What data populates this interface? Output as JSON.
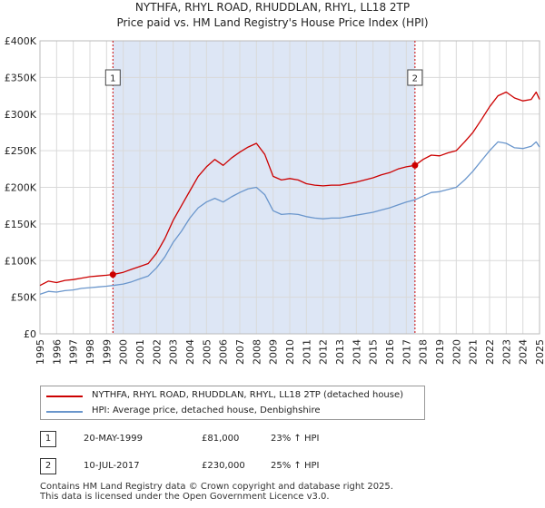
{
  "title_line1": "NYTHFA, RHYL ROAD, RHUDDLAN, RHYL, LL18 2TP",
  "title_line2": "Price paid vs. HM Land Registry's House Price Index (HPI)",
  "colors": {
    "property": "#cc0000",
    "hpi": "#6a96cc",
    "shade": "#dde6f5",
    "grid": "#d9d9d9",
    "marker_line": "#cc0000"
  },
  "chart_data": {
    "type": "line",
    "ylim": [
      0,
      400000
    ],
    "xlim": [
      1995.0,
      2025.0
    ],
    "yticks": [
      0,
      50000,
      100000,
      150000,
      200000,
      250000,
      300000,
      350000,
      400000
    ],
    "ytick_labels": [
      "£0",
      "£50K",
      "£100K",
      "£150K",
      "£200K",
      "£250K",
      "£300K",
      "£350K",
      "£400K"
    ],
    "xtick_labels": [
      "1995",
      "1996",
      "1997",
      "1998",
      "1999",
      "2000",
      "2001",
      "2002",
      "2003",
      "2004",
      "2005",
      "2006",
      "2007",
      "2008",
      "2009",
      "2010",
      "2011",
      "2012",
      "2013",
      "2014",
      "2015",
      "2016",
      "2017",
      "2018",
      "2019",
      "2020",
      "2021",
      "2022",
      "2023",
      "2024",
      "2025"
    ],
    "shaded_period": [
      1999.38,
      2017.52
    ],
    "series": [
      {
        "name": "NYTHFA, RHYL ROAD, RHUDDLAN, RHYL, LL18 2TP (detached house)",
        "x": [
          1995.0,
          1995.5,
          1996.0,
          1996.5,
          1997.0,
          1997.5,
          1998.0,
          1998.5,
          1999.0,
          1999.38,
          2000.0,
          2000.5,
          2001.0,
          2001.5,
          2002.0,
          2002.5,
          2003.0,
          2003.5,
          2004.0,
          2004.5,
          2005.0,
          2005.5,
          2006.0,
          2006.5,
          2007.0,
          2007.5,
          2008.0,
          2008.5,
          2009.0,
          2009.5,
          2010.0,
          2010.5,
          2011.0,
          2011.5,
          2012.0,
          2012.5,
          2013.0,
          2013.5,
          2014.0,
          2014.5,
          2015.0,
          2015.5,
          2016.0,
          2016.5,
          2017.0,
          2017.52,
          2018.0,
          2018.5,
          2019.0,
          2019.5,
          2020.0,
          2020.5,
          2021.0,
          2021.5,
          2022.0,
          2022.5,
          2023.0,
          2023.5,
          2024.0,
          2024.5,
          2024.8,
          2025.0
        ],
        "values": [
          66000,
          72000,
          70000,
          73000,
          74000,
          76000,
          78000,
          79000,
          80000,
          81000,
          84000,
          88000,
          92000,
          96000,
          110000,
          130000,
          155000,
          175000,
          195000,
          215000,
          228000,
          238000,
          230000,
          240000,
          248000,
          255000,
          260000,
          245000,
          215000,
          210000,
          212000,
          210000,
          205000,
          203000,
          202000,
          203000,
          203000,
          205000,
          207000,
          210000,
          213000,
          217000,
          220000,
          225000,
          228000,
          230000,
          238000,
          244000,
          243000,
          247000,
          250000,
          262000,
          275000,
          292000,
          310000,
          325000,
          330000,
          322000,
          318000,
          320000,
          330000,
          320000
        ]
      },
      {
        "name": "HPI: Average price, detached house, Denbighshire",
        "x": [
          1995.0,
          1995.5,
          1996.0,
          1996.5,
          1997.0,
          1997.5,
          1998.0,
          1998.5,
          1999.0,
          1999.38,
          2000.0,
          2000.5,
          2001.0,
          2001.5,
          2002.0,
          2002.5,
          2003.0,
          2003.5,
          2004.0,
          2004.5,
          2005.0,
          2005.5,
          2006.0,
          2006.5,
          2007.0,
          2007.5,
          2008.0,
          2008.5,
          2009.0,
          2009.5,
          2010.0,
          2010.5,
          2011.0,
          2011.5,
          2012.0,
          2012.5,
          2013.0,
          2013.5,
          2014.0,
          2014.5,
          2015.0,
          2015.5,
          2016.0,
          2016.5,
          2017.0,
          2017.52,
          2018.0,
          2018.5,
          2019.0,
          2019.5,
          2020.0,
          2020.5,
          2021.0,
          2021.5,
          2022.0,
          2022.5,
          2023.0,
          2023.5,
          2024.0,
          2024.5,
          2024.8,
          2025.0
        ],
        "values": [
          54000,
          58000,
          57000,
          59000,
          60000,
          62000,
          63000,
          64000,
          65000,
          66000,
          68000,
          71000,
          75000,
          79000,
          90000,
          105000,
          125000,
          140000,
          158000,
          172000,
          180000,
          185000,
          180000,
          187000,
          193000,
          198000,
          200000,
          190000,
          168000,
          163000,
          164000,
          163000,
          160000,
          158000,
          157000,
          158000,
          158000,
          160000,
          162000,
          164000,
          166000,
          169000,
          172000,
          176000,
          180000,
          183000,
          188000,
          193000,
          194000,
          197000,
          200000,
          210000,
          222000,
          236000,
          250000,
          262000,
          260000,
          254000,
          253000,
          256000,
          262000,
          255000
        ]
      }
    ],
    "sales": [
      {
        "label": "1",
        "x": 1999.38,
        "value": 81000
      },
      {
        "label": "2",
        "x": 2017.52,
        "value": 230000
      }
    ]
  },
  "legend": {
    "property_label": "NYTHFA, RHYL ROAD, RHUDDLAN, RHYL, LL18 2TP (detached house)",
    "hpi_label": "HPI: Average price, detached house, Denbighshire"
  },
  "sales_table": [
    {
      "num": "1",
      "date": "20-MAY-1999",
      "price": "£81,000",
      "hpi": "23% ↑ HPI"
    },
    {
      "num": "2",
      "date": "10-JUL-2017",
      "price": "£230,000",
      "hpi": "25% ↑ HPI"
    }
  ],
  "footer_line1": "Contains HM Land Registry data © Crown copyright and database right 2025.",
  "footer_line2": "This data is licensed under the Open Government Licence v3.0."
}
